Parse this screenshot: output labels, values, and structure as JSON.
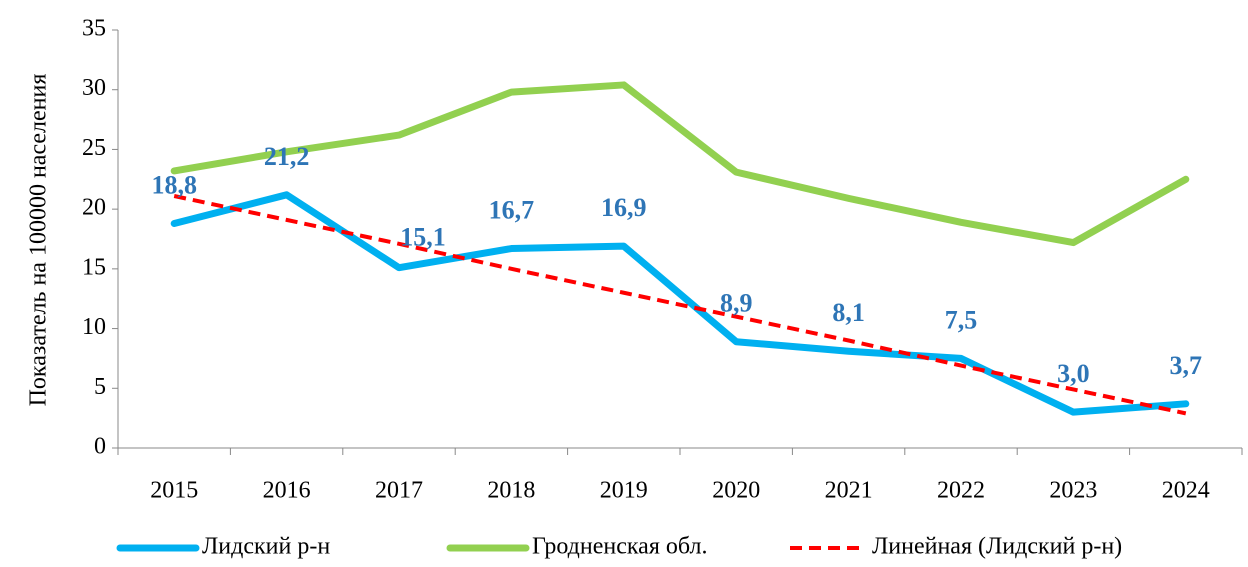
{
  "chart_data": {
    "type": "line",
    "y_label": "Показатель на 100000 населения",
    "categories": [
      "2015",
      "2016",
      "2017",
      "2018",
      "2019",
      "2020",
      "2021",
      "2022",
      "2023",
      "2024"
    ],
    "series": [
      {
        "name": "Лидский р-н",
        "color": "#00b0f0",
        "style": "solid",
        "values": [
          18.8,
          21.2,
          15.1,
          16.7,
          16.9,
          8.9,
          8.1,
          7.5,
          3.0,
          3.7
        ],
        "value_labels": [
          "18,8",
          "21,2",
          "15,1",
          "16,7",
          "16,9",
          "8,9",
          "8,1",
          "7,5",
          "3,0",
          "3,7"
        ]
      },
      {
        "name": "Гродненская обл.",
        "color": "#92d050",
        "style": "solid",
        "values": [
          23.2,
          24.8,
          26.2,
          29.8,
          30.4,
          23.1,
          20.9,
          18.9,
          17.2,
          22.5
        ]
      },
      {
        "name": "Линейная (Лидский р-н)",
        "color": "#ff0000",
        "style": "dashed",
        "values": [
          21.1,
          19.1,
          17.1,
          15.0,
          13.0,
          11.0,
          9.0,
          6.9,
          4.9,
          2.9
        ]
      }
    ],
    "ylim": [
      0,
      35
    ],
    "yticks": [
      0,
      5,
      10,
      15,
      20,
      25,
      30,
      35
    ],
    "legend": "bottom"
  }
}
